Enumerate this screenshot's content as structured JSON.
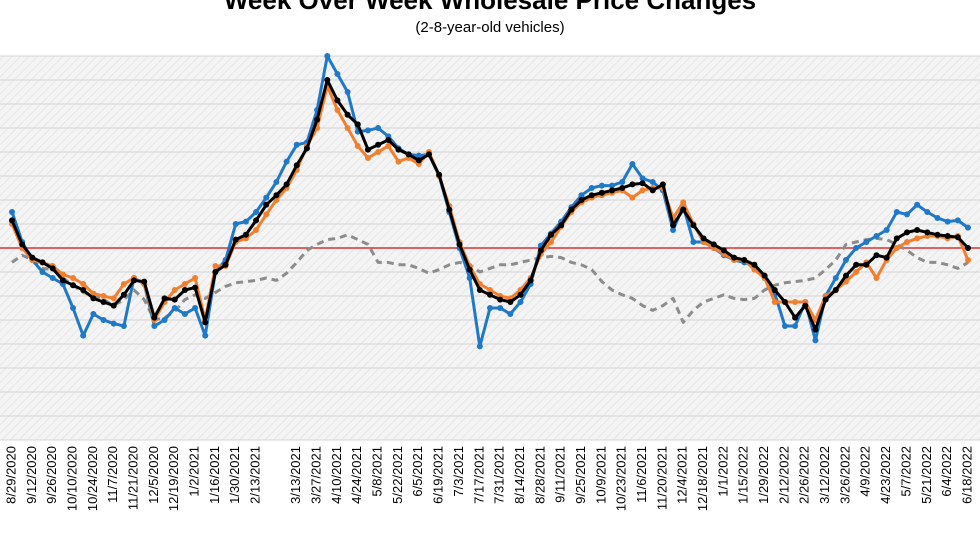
{
  "chart_data": {
    "type": "line",
    "title": "Week Over Week Wholesale Price Changes",
    "subtitle": "(2-8-year-old vehicles)",
    "categories": [
      "8/29/2020",
      null,
      "9/12/2020",
      null,
      "9/26/2020",
      null,
      "10/10/2020",
      null,
      "10/24/2020",
      null,
      "11/7/2020",
      null,
      "11/21/2020",
      null,
      "12/5/2020",
      null,
      "12/19/2020",
      null,
      "1/2/2021",
      null,
      "1/16/2021",
      null,
      "1/30/2021",
      null,
      "2/13/2021",
      null,
      null,
      null,
      "3/13/2021",
      null,
      "3/27/2021",
      null,
      "4/10/2021",
      null,
      "4/24/2021",
      null,
      "5/8/2021",
      null,
      "5/22/2021",
      null,
      "6/5/2021",
      null,
      "6/19/2021",
      null,
      "7/3/2021",
      null,
      "7/17/2021",
      null,
      "7/31/2021",
      null,
      "8/14/2021",
      null,
      "8/28/2021",
      null,
      "9/11/2021",
      null,
      "9/25/2021",
      null,
      "10/9/2021",
      null,
      "10/23/2021",
      null,
      "11/6/2021",
      null,
      "11/20/2021",
      null,
      "12/4/2021",
      null,
      "12/18/2021",
      null,
      "1/1/2022",
      null,
      "1/15/2022",
      null,
      "1/29/2022",
      null,
      "2/12/2022",
      null,
      "2/26/2022",
      null,
      "3/12/2022",
      null,
      "3/26/2022",
      null,
      "4/9/2022",
      null,
      "4/23/2022",
      null,
      "5/7/2022",
      null,
      "5/21/2022",
      null,
      "6/4/2022",
      null,
      "6/18/2022"
    ],
    "series": [
      {
        "color": "#8c8c8c",
        "dashed": true,
        "values": [
          -0.12,
          -0.06,
          -0.1,
          -0.17,
          -0.18,
          -0.25,
          -0.31,
          -0.37,
          -0.4,
          -0.43,
          -0.48,
          -0.43,
          -0.35,
          -0.43,
          -0.6,
          -0.58,
          -0.53,
          -0.43,
          -0.39,
          -0.42,
          -0.37,
          -0.32,
          -0.29,
          -0.28,
          -0.27,
          -0.25,
          -0.27,
          -0.21,
          -0.12,
          -0.02,
          0.03,
          0.07,
          0.08,
          0.11,
          0.07,
          0.03,
          -0.12,
          -0.12,
          -0.14,
          -0.14,
          -0.17,
          -0.21,
          -0.18,
          -0.14,
          -0.12,
          -0.14,
          -0.2,
          -0.17,
          -0.14,
          -0.14,
          -0.12,
          -0.1,
          -0.08,
          -0.07,
          -0.08,
          -0.12,
          -0.14,
          -0.18,
          -0.28,
          -0.35,
          -0.39,
          -0.42,
          -0.48,
          -0.52,
          -0.48,
          -0.42,
          -0.62,
          -0.52,
          -0.45,
          -0.42,
          -0.39,
          -0.42,
          -0.43,
          -0.42,
          -0.35,
          -0.31,
          -0.29,
          -0.28,
          -0.27,
          -0.25,
          -0.18,
          -0.1,
          0.03,
          0.05,
          0.07,
          0.08,
          0.07,
          0.03,
          -0.02,
          -0.08,
          -0.12,
          -0.12,
          -0.14,
          -0.17,
          -0.12
        ]
      },
      {
        "color": "#1f78c8",
        "values": [
          0.3,
          0.05,
          -0.1,
          -0.2,
          -0.25,
          -0.3,
          -0.5,
          -0.73,
          -0.55,
          -0.6,
          -0.63,
          -0.65,
          -0.25,
          -0.3,
          -0.65,
          -0.6,
          -0.5,
          -0.55,
          -0.5,
          -0.73,
          -0.2,
          -0.1,
          0.2,
          0.22,
          0.3,
          0.42,
          0.55,
          0.72,
          0.86,
          0.88,
          1.15,
          1.6,
          1.45,
          1.3,
          0.97,
          0.98,
          1.0,
          0.93,
          0.83,
          0.78,
          0.77,
          0.78,
          0.6,
          0.3,
          0.0,
          -0.25,
          -0.82,
          -0.5,
          -0.5,
          -0.55,
          -0.45,
          -0.3,
          0.02,
          0.12,
          0.22,
          0.34,
          0.44,
          0.5,
          0.52,
          0.52,
          0.55,
          0.7,
          0.58,
          0.55,
          0.48,
          0.15,
          0.35,
          0.05,
          0.05,
          0.0,
          -0.06,
          -0.1,
          -0.12,
          -0.15,
          -0.25,
          -0.38,
          -0.65,
          -0.65,
          -0.45,
          -0.77,
          -0.4,
          -0.25,
          -0.1,
          0.0,
          0.05,
          0.1,
          0.15,
          0.3,
          0.28,
          0.36,
          0.3,
          0.25,
          0.22,
          0.23,
          0.17
        ]
      },
      {
        "color": "#f08030",
        "values": [
          0.2,
          0.0,
          -0.1,
          -0.12,
          -0.15,
          -0.22,
          -0.25,
          -0.3,
          -0.38,
          -0.4,
          -0.42,
          -0.3,
          -0.25,
          -0.3,
          -0.6,
          -0.45,
          -0.35,
          -0.3,
          -0.25,
          -0.6,
          -0.15,
          -0.15,
          0.05,
          0.08,
          0.15,
          0.28,
          0.4,
          0.5,
          0.65,
          0.85,
          1.0,
          1.35,
          1.15,
          1.0,
          0.85,
          0.75,
          0.8,
          0.85,
          0.72,
          0.75,
          0.7,
          0.8,
          0.6,
          0.35,
          0.05,
          -0.15,
          -0.3,
          -0.35,
          -0.4,
          -0.42,
          -0.35,
          -0.25,
          -0.05,
          0.05,
          0.18,
          0.3,
          0.38,
          0.42,
          0.44,
          0.46,
          0.48,
          0.42,
          0.48,
          0.5,
          0.5,
          0.25,
          0.38,
          0.2,
          0.05,
          0.0,
          -0.05,
          -0.1,
          -0.1,
          -0.18,
          -0.25,
          -0.45,
          -0.45,
          -0.45,
          -0.45,
          -0.6,
          -0.4,
          -0.35,
          -0.28,
          -0.2,
          -0.12,
          -0.25,
          -0.1,
          0.0,
          0.05,
          0.08,
          0.1,
          0.1,
          0.08,
          0.1,
          -0.1
        ]
      },
      {
        "color": "#000000",
        "values": [
          0.23,
          0.03,
          -0.08,
          -0.12,
          -0.17,
          -0.27,
          -0.31,
          -0.35,
          -0.42,
          -0.45,
          -0.48,
          -0.39,
          -0.27,
          -0.28,
          -0.58,
          -0.42,
          -0.43,
          -0.35,
          -0.33,
          -0.62,
          -0.2,
          -0.14,
          0.07,
          0.11,
          0.23,
          0.36,
          0.44,
          0.53,
          0.69,
          0.83,
          1.07,
          1.4,
          1.23,
          1.11,
          1.03,
          0.82,
          0.86,
          0.9,
          0.82,
          0.78,
          0.73,
          0.78,
          0.61,
          0.32,
          0.03,
          -0.18,
          -0.35,
          -0.39,
          -0.43,
          -0.45,
          -0.39,
          -0.27,
          -0.02,
          0.11,
          0.19,
          0.32,
          0.4,
          0.44,
          0.46,
          0.48,
          0.5,
          0.53,
          0.54,
          0.48,
          0.53,
          0.19,
          0.32,
          0.19,
          0.08,
          0.03,
          -0.02,
          -0.08,
          -0.1,
          -0.14,
          -0.23,
          -0.35,
          -0.45,
          -0.58,
          -0.48,
          -0.68,
          -0.43,
          -0.35,
          -0.23,
          -0.14,
          -0.14,
          -0.06,
          -0.08,
          0.08,
          0.13,
          0.15,
          0.13,
          0.11,
          0.1,
          0.09,
          0.0
        ]
      }
    ],
    "ylim": [
      -1.6,
      1.6
    ],
    "yticks": [
      -1.6,
      -1.4,
      -1.2,
      -1.0,
      -0.8,
      -0.6,
      -0.4,
      -0.2,
      0,
      0.2,
      0.4,
      0.6,
      0.8,
      1.0,
      1.2,
      1.4,
      1.6
    ],
    "grid": true,
    "hline": 0,
    "hline_color": "#e03030"
  }
}
